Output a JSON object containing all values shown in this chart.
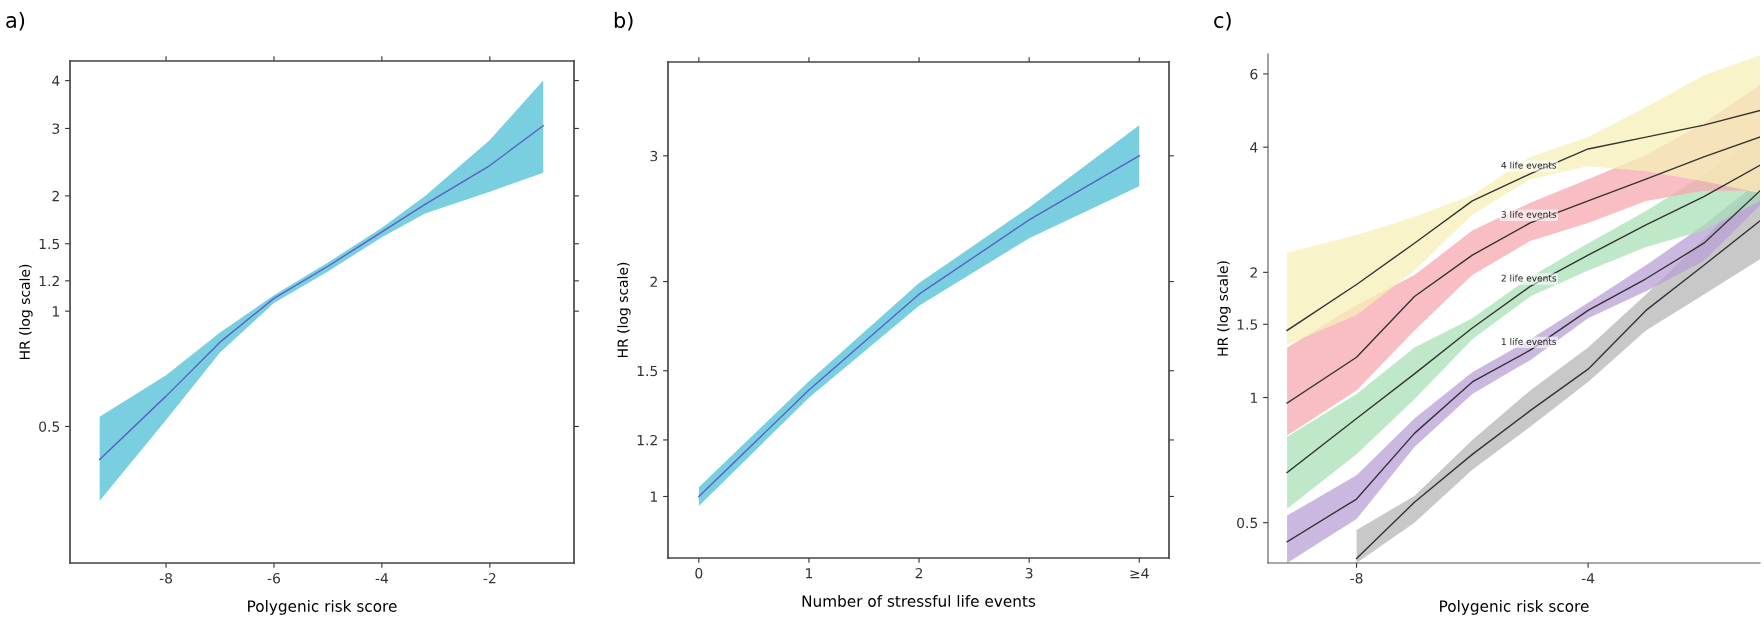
{
  "chart_data": [
    {
      "type": "line",
      "title": "a)",
      "xlabel": "Polygenic risk score",
      "ylabel": "HR (log scale)",
      "log": "y",
      "xlim": [
        -9.78,
        -0.44
      ],
      "ylim": [
        0.22,
        4.5
      ],
      "xticks": [
        -8,
        -6,
        -4,
        -2
      ],
      "yticks": [
        0.5,
        1,
        1.2,
        1.5,
        2,
        3,
        4
      ],
      "grid": false,
      "legend": false,
      "series": [
        {
          "color": "#5b5fc7",
          "x": [
            -9.23,
            -8,
            -7,
            -6,
            -5,
            -4,
            -3.2,
            -2,
            -1.01
          ],
          "values": [
            0.41,
            0.6,
            0.83,
            1.08,
            1.31,
            1.61,
            1.9,
            2.4,
            3.05
          ],
          "lower": [
            0.32,
            0.52,
            0.78,
            1.05,
            1.27,
            1.56,
            1.8,
            2.05,
            2.3
          ],
          "upper": [
            0.53,
            0.68,
            0.88,
            1.1,
            1.34,
            1.65,
            2.0,
            2.8,
            4.0
          ]
        }
      ]
    },
    {
      "type": "line",
      "title": "b)",
      "xlabel": "Number of stressful life events",
      "ylabel": "HR (log scale)",
      "log": "y",
      "categories": [
        "0",
        "1",
        "2",
        "3",
        "≥4"
      ],
      "ylim": [
        0.82,
        4.06
      ],
      "yticks": [
        1,
        1.2,
        1.5,
        2,
        3
      ],
      "grid": false,
      "legend": false,
      "series": [
        {
          "color": "#5b5fc7",
          "values": [
            1.0,
            1.41,
            1.92,
            2.44,
            3.0
          ],
          "lower": [
            0.97,
            1.375,
            1.85,
            2.3,
            2.72
          ],
          "upper": [
            1.03,
            1.45,
            1.99,
            2.54,
            3.31
          ]
        }
      ]
    },
    {
      "type": "line",
      "title": "c)",
      "xlabel": "Polygenic risk score",
      "ylabel": "HR (log scale)",
      "log": "y",
      "xlim": [
        -9.53,
        -1.03
      ],
      "ylim": [
        0.4,
        6.7
      ],
      "xticks": [
        -8,
        -4
      ],
      "yticks": [
        0.5,
        1,
        1.5,
        2,
        4,
        6
      ],
      "grid": false,
      "legend": false,
      "series": [
        {
          "color": "#333333",
          "x": [
            -8,
            -7,
            -6,
            -5,
            -4,
            -3,
            -2,
            -1.03
          ],
          "values": [
            0.41,
            0.56,
            0.73,
            0.93,
            1.17,
            1.62,
            2.08,
            2.66
          ],
          "lower": [
            0.4,
            0.5,
            0.67,
            0.85,
            1.09,
            1.45,
            1.77,
            2.15
          ],
          "upper": [
            0.48,
            0.58,
            0.79,
            1.04,
            1.32,
            1.77,
            2.41,
            3.32
          ]
        },
        {
          "name": "1 life events",
          "color": "#333333",
          "x": [
            -9.2,
            -8,
            -7,
            -6,
            -5,
            -4,
            -3,
            -2,
            -1.03
          ],
          "values": [
            0.45,
            0.57,
            0.82,
            1.09,
            1.3,
            1.62,
            1.93,
            2.35,
            3.14
          ],
          "lower": [
            0.4,
            0.51,
            0.76,
            1.02,
            1.23,
            1.55,
            1.8,
            2.13,
            2.9
          ],
          "upper": [
            0.52,
            0.65,
            0.89,
            1.15,
            1.38,
            1.69,
            2.08,
            2.6,
            3.32
          ]
        },
        {
          "name": "2 life events",
          "color": "#333333",
          "x": [
            -9.2,
            -8,
            -7,
            -6,
            -5,
            -4,
            -3,
            -2,
            -1.03
          ],
          "values": [
            0.66,
            0.89,
            1.14,
            1.47,
            1.85,
            2.2,
            2.6,
            3.04,
            3.62
          ],
          "lower": [
            0.54,
            0.73,
            0.99,
            1.38,
            1.75,
            2.02,
            2.3,
            2.52,
            2.97
          ],
          "upper": [
            0.805,
            1.02,
            1.32,
            1.55,
            1.95,
            2.35,
            2.81,
            3.43,
            4.28
          ]
        },
        {
          "name": "3 life events",
          "color": "#333333",
          "x": [
            -9.2,
            -8,
            -7,
            -6,
            -5,
            -4,
            -3,
            -2,
            -1.03
          ],
          "values": [
            0.97,
            1.25,
            1.75,
            2.2,
            2.63,
            2.97,
            3.35,
            3.79,
            4.23
          ],
          "lower": [
            0.81,
            1.04,
            1.45,
            1.97,
            2.38,
            2.63,
            2.97,
            3.14,
            3.14
          ],
          "upper": [
            1.32,
            1.67,
            1.97,
            2.52,
            2.94,
            3.35,
            3.83,
            4.57,
            5.64
          ]
        },
        {
          "name": "4 life events",
          "color": "#333333",
          "x": [
            -9.2,
            -8,
            -7,
            -6,
            -5,
            -4,
            -3,
            -2,
            -1.03
          ],
          "values": [
            1.45,
            1.87,
            2.35,
            2.97,
            3.45,
            3.96,
            4.23,
            4.52,
            4.9
          ],
          "lower": [
            1.34,
            1.58,
            2.02,
            2.75,
            3.35,
            3.6,
            3.5,
            3.31,
            3.1
          ],
          "upper": [
            2.23,
            2.46,
            2.72,
            3.07,
            3.79,
            4.23,
            4.99,
            5.96,
            6.65
          ]
        }
      ]
    }
  ]
}
